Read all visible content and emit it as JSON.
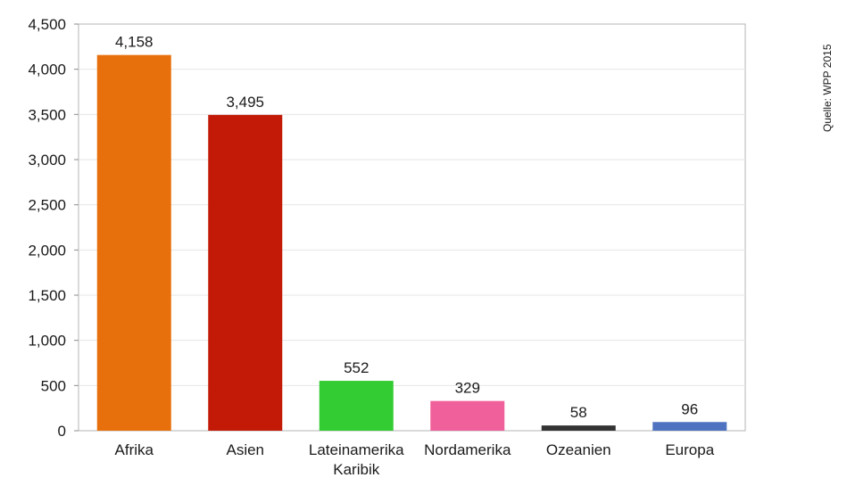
{
  "source_text": "Quelle: WPP 2015",
  "chart_data": {
    "type": "bar",
    "categories": [
      [
        "Afrika"
      ],
      [
        "Asien"
      ],
      [
        "Lateinamerika",
        "Karibik"
      ],
      [
        "Nordamerika"
      ],
      [
        "Ozeanien"
      ],
      [
        "Europa"
      ]
    ],
    "values": [
      4158,
      3495,
      552,
      329,
      58,
      96
    ],
    "value_labels": [
      "4,158",
      "3,495",
      "552",
      "329",
      "58",
      "96"
    ],
    "colors": [
      "#e8700c",
      "#c21a07",
      "#33cc33",
      "#f0609a",
      "#333333",
      "#4f73c1"
    ],
    "ylim": [
      0,
      4500
    ],
    "yticks": [
      0,
      500,
      1000,
      1500,
      2000,
      2500,
      3000,
      3500,
      4000,
      4500
    ],
    "ytick_labels": [
      "0",
      "500",
      "1,000",
      "1,500",
      "2,000",
      "2,500",
      "3,000",
      "3,500",
      "4,000",
      "4,500"
    ],
    "grid": true,
    "title": "",
    "xlabel": "",
    "ylabel": ""
  }
}
